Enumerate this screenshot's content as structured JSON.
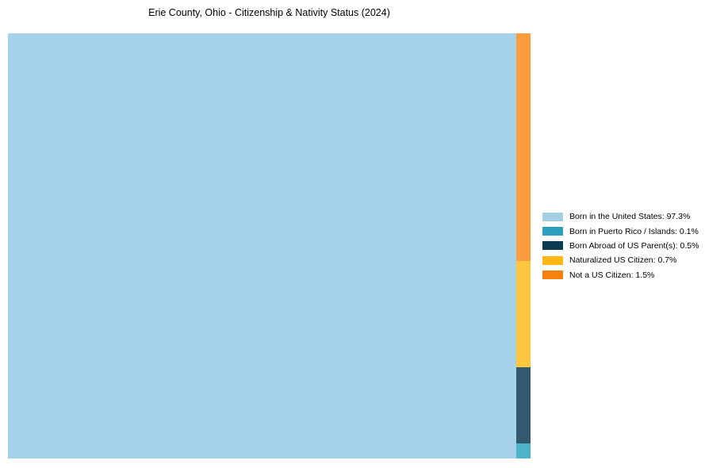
{
  "chart_data": {
    "type": "treemap",
    "title": "Erie County, Ohio - Citizenship & Nativity Status (2024)",
    "legend_position": "center right, outside plot area",
    "layout": "single large rectangle for dominant category; remaining categories stacked top-to-bottom by descending value in a narrow right-hand column",
    "slices": [
      {
        "label": "Born in the United States",
        "value": 97.3,
        "legend_text": "Born in the United States: 97.3%",
        "rect_color": "#a5d2e8",
        "legend_color": "#a6cee3"
      },
      {
        "label": "Born in Puerto Rico / Islands",
        "value": 0.1,
        "legend_text": "Born in Puerto Rico / Islands: 0.1%",
        "rect_color": "#4db3c9",
        "legend_color": "#2b9fbc"
      },
      {
        "label": "Born Abroad of US Parent(s)",
        "value": 0.5,
        "legend_text": "Born Abroad of US Parent(s): 0.5%",
        "rect_color": "#33596e",
        "legend_color": "#0d3a53"
      },
      {
        "label": "Naturalized US Citizen",
        "value": 0.7,
        "legend_text": "Naturalized US Citizen: 0.7%",
        "rect_color": "#fdc63f",
        "legend_color": "#fdb714"
      },
      {
        "label": "Not a US Citizen",
        "value": 1.5,
        "legend_text": "Not a US Citizen: 1.5%",
        "rect_color": "#f99d3e",
        "legend_color": "#f5820f"
      }
    ]
  }
}
